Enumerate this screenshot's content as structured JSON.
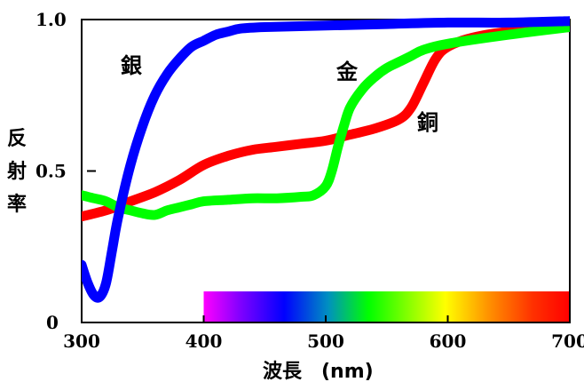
{
  "chart_data": {
    "type": "line",
    "xlabel": "波長　(nm)",
    "ylabel": [
      "反",
      "射",
      "率"
    ],
    "xlim": [
      300,
      700
    ],
    "ylim": [
      0,
      1.0
    ],
    "x_ticks": [
      "300",
      "400",
      "500",
      "600",
      "700"
    ],
    "y_ticks": [
      "0",
      "0.5",
      "1.0"
    ],
    "grid": false,
    "spectrum_bar": {
      "from_nm": 400,
      "to_nm": 700
    },
    "series": [
      {
        "name": "銀",
        "color": "#0000ff",
        "points": [
          [
            300,
            0.19
          ],
          [
            305,
            0.13
          ],
          [
            310,
            0.09
          ],
          [
            315,
            0.085
          ],
          [
            320,
            0.13
          ],
          [
            325,
            0.24
          ],
          [
            330,
            0.35
          ],
          [
            340,
            0.52
          ],
          [
            350,
            0.65
          ],
          [
            360,
            0.75
          ],
          [
            370,
            0.82
          ],
          [
            380,
            0.87
          ],
          [
            390,
            0.91
          ],
          [
            400,
            0.93
          ],
          [
            410,
            0.95
          ],
          [
            420,
            0.96
          ],
          [
            430,
            0.97
          ],
          [
            450,
            0.975
          ],
          [
            500,
            0.98
          ],
          [
            550,
            0.985
          ],
          [
            600,
            0.99
          ],
          [
            650,
            0.99
          ],
          [
            700,
            0.995
          ]
        ]
      },
      {
        "name": "金",
        "color": "#00ff00",
        "points": [
          [
            300,
            0.42
          ],
          [
            310,
            0.41
          ],
          [
            320,
            0.4
          ],
          [
            330,
            0.38
          ],
          [
            340,
            0.37
          ],
          [
            350,
            0.36
          ],
          [
            360,
            0.355
          ],
          [
            370,
            0.37
          ],
          [
            380,
            0.38
          ],
          [
            390,
            0.39
          ],
          [
            400,
            0.4
          ],
          [
            420,
            0.405
          ],
          [
            440,
            0.41
          ],
          [
            460,
            0.41
          ],
          [
            480,
            0.415
          ],
          [
            490,
            0.42
          ],
          [
            500,
            0.45
          ],
          [
            505,
            0.5
          ],
          [
            510,
            0.58
          ],
          [
            515,
            0.65
          ],
          [
            520,
            0.71
          ],
          [
            530,
            0.77
          ],
          [
            540,
            0.81
          ],
          [
            550,
            0.84
          ],
          [
            560,
            0.86
          ],
          [
            570,
            0.88
          ],
          [
            580,
            0.9
          ],
          [
            600,
            0.92
          ],
          [
            650,
            0.95
          ],
          [
            700,
            0.975
          ]
        ]
      },
      {
        "name": "銅",
        "color": "#ff0000",
        "points": [
          [
            300,
            0.35
          ],
          [
            320,
            0.37
          ],
          [
            340,
            0.4
          ],
          [
            360,
            0.43
          ],
          [
            380,
            0.47
          ],
          [
            400,
            0.52
          ],
          [
            420,
            0.55
          ],
          [
            440,
            0.57
          ],
          [
            460,
            0.58
          ],
          [
            480,
            0.59
          ],
          [
            500,
            0.6
          ],
          [
            520,
            0.62
          ],
          [
            540,
            0.64
          ],
          [
            560,
            0.67
          ],
          [
            570,
            0.71
          ],
          [
            580,
            0.79
          ],
          [
            590,
            0.87
          ],
          [
            600,
            0.91
          ],
          [
            620,
            0.94
          ],
          [
            650,
            0.96
          ],
          [
            700,
            0.975
          ]
        ]
      }
    ]
  }
}
